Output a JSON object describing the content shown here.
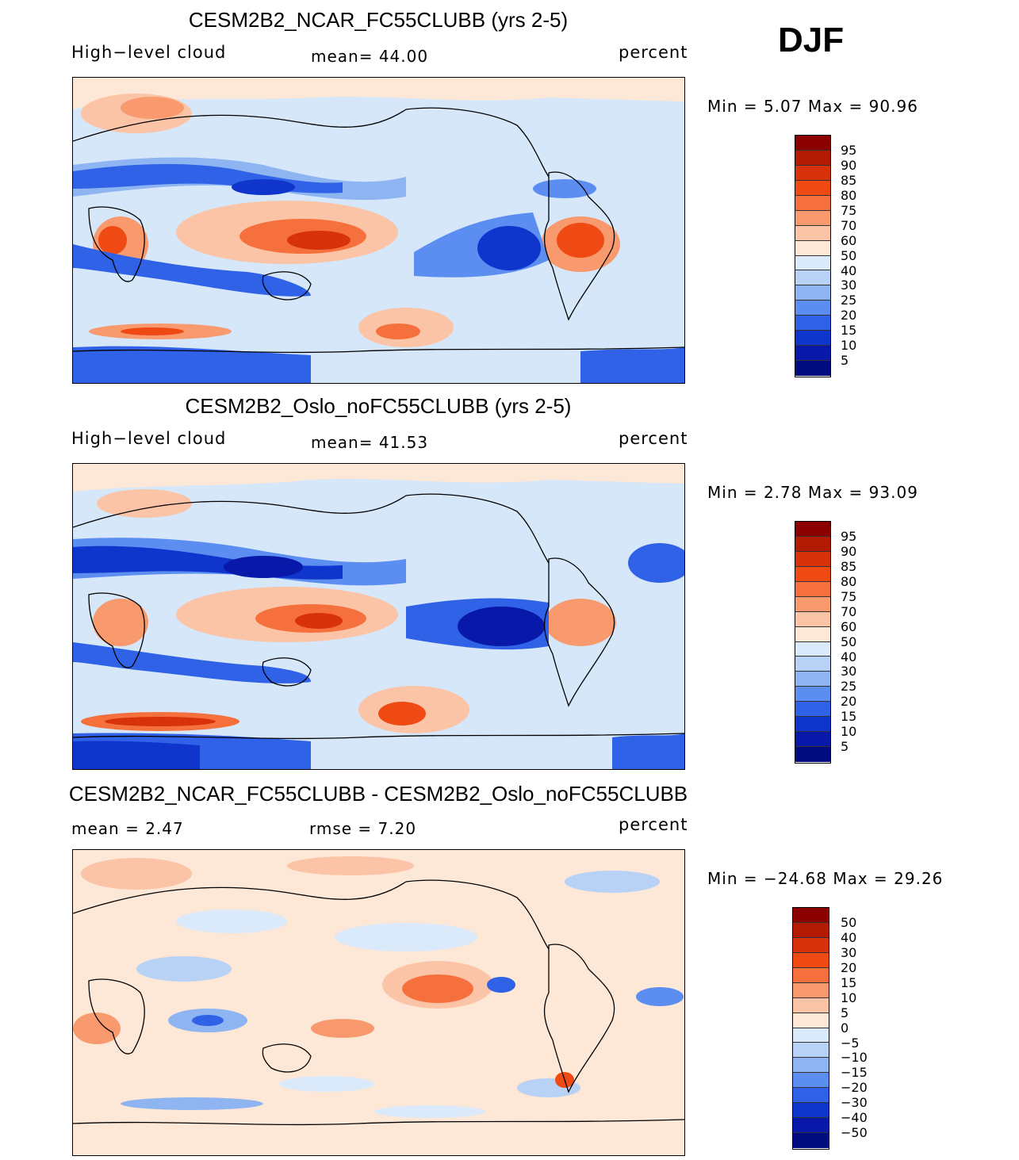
{
  "season": "DJF",
  "panels": [
    {
      "title": "CESM2B2_NCAR_FC55CLUBB (yrs 2-5)",
      "variable": "High−level cloud",
      "stat_text": "mean=   44.00",
      "units": "percent",
      "minmax": "Min =    5.07  Max =    90.96"
    },
    {
      "title": "CESM2B2_Oslo_noFC55CLUBB (yrs 2-5)",
      "variable": "High−level cloud",
      "stat_text": "mean=   41.53",
      "units": "percent",
      "minmax": "Min =    2.78  Max =    93.09"
    },
    {
      "title": "CESM2B2_NCAR_FC55CLUBB - CESM2B2_Oslo_noFC55CLUBB",
      "mean_text": "mean =     2.47",
      "rmse_text": "rmse =     7.20",
      "units": "percent",
      "minmax": "Min = −24.68  Max =    29.26"
    }
  ],
  "colorbars": {
    "absolute": {
      "labels": [
        "95",
        "90",
        "85",
        "80",
        "75",
        "70",
        "60",
        "50",
        "40",
        "30",
        "25",
        "20",
        "15",
        "10",
        "5"
      ],
      "colors": [
        "#8b0000",
        "#b21a04",
        "#d8320a",
        "#f04a14",
        "#f5703c",
        "#f89a6e",
        "#fbc4a6",
        "#fde7d6",
        "#dbeafb",
        "#b8d2f6",
        "#8fb4f2",
        "#5b8ef0",
        "#2f62e6",
        "#1035cc",
        "#0818a8",
        "#000c80"
      ]
    },
    "difference": {
      "labels": [
        "50",
        "40",
        "30",
        "20",
        "15",
        "10",
        "5",
        "0",
        "−5",
        "−10",
        "−15",
        "−20",
        "−30",
        "−40",
        "−50"
      ],
      "colors": [
        "#8b0000",
        "#b21a04",
        "#d8320a",
        "#f04a14",
        "#f5703c",
        "#f89a6e",
        "#fbc4a6",
        "#fde7d6",
        "#dbeafb",
        "#b8d2f6",
        "#8fb4f2",
        "#5b8ef0",
        "#2f62e6",
        "#1035cc",
        "#0818a8",
        "#000c80"
      ]
    }
  }
}
